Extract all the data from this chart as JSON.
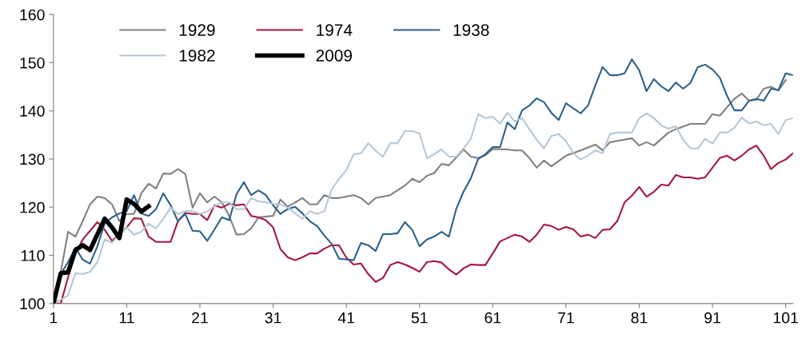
{
  "chart_data": {
    "type": "line",
    "xlim": [
      1,
      102
    ],
    "ylim": [
      100,
      160
    ],
    "xticks": [
      1,
      11,
      21,
      31,
      41,
      51,
      61,
      71,
      81,
      91,
      101
    ],
    "yticks": [
      100,
      110,
      120,
      130,
      140,
      150,
      160
    ],
    "grid": false,
    "legend": "top left",
    "marker": "none",
    "line_style": "solid",
    "series": [
      {
        "name": "1929",
        "color": "#808080",
        "x": [
          1,
          2,
          3,
          4,
          5,
          6,
          7,
          8,
          9,
          10,
          11,
          12,
          13,
          14,
          15,
          16,
          17,
          18,
          19,
          20,
          21,
          22,
          23,
          24,
          25,
          26,
          27,
          28,
          29,
          31,
          32,
          33,
          34,
          35,
          36,
          37,
          38,
          39,
          40,
          42,
          43,
          44,
          45,
          47,
          48,
          49,
          50,
          51,
          52,
          53,
          54,
          55,
          56,
          57,
          58,
          59,
          60,
          61,
          63,
          64,
          65,
          66,
          67,
          68,
          69,
          71,
          73,
          75,
          76,
          77,
          80,
          81,
          82,
          83,
          85,
          86,
          88,
          90,
          91,
          92,
          94,
          95,
          96,
          97,
          98,
          99,
          100,
          101
        ],
        "values": [
          100,
          106.6,
          114.9,
          113.9,
          117.1,
          120.6,
          122.2,
          121.9,
          120.6,
          117.1,
          118.6,
          118.6,
          122.9,
          124.9,
          123.9,
          127,
          126.9,
          127.9,
          126.9,
          119.9,
          122.9,
          121,
          122.2,
          121,
          118.2,
          114.3,
          114.4,
          115.6,
          117.9,
          118.2,
          121.6,
          120.1,
          121,
          121.9,
          120.6,
          120.6,
          122.5,
          121.9,
          121.9,
          122.5,
          121.9,
          120.6,
          121.9,
          122.5,
          123.5,
          124.5,
          125.9,
          125.2,
          126.5,
          127.1,
          129,
          128.7,
          130.3,
          132,
          130.5,
          130.2,
          130.8,
          132.1,
          132,
          131.8,
          131.8,
          130.2,
          128.2,
          129.7,
          128.5,
          130.7,
          131.8,
          133,
          131.8,
          133.5,
          134.3,
          132.8,
          133.5,
          132.8,
          135.5,
          136.2,
          137.3,
          137.3,
          139.3,
          139,
          142.5,
          143.6,
          142.1,
          142.3,
          144.6,
          145,
          144.2,
          146.4
        ]
      },
      {
        "name": "1974",
        "color": "#a5173d",
        "x": [
          1,
          2,
          3,
          4,
          5,
          7,
          8,
          9,
          10,
          11,
          12,
          13,
          14,
          15,
          17,
          18,
          19,
          20,
          21,
          22,
          23,
          24,
          25,
          26,
          27,
          28,
          29,
          30,
          31,
          32,
          33,
          34,
          35,
          36,
          37,
          38,
          39,
          40,
          41,
          42,
          43,
          44,
          45,
          46,
          47,
          48,
          49,
          50,
          51,
          52,
          53,
          54,
          55,
          56,
          57,
          58,
          59,
          60,
          61,
          62,
          63,
          64,
          65,
          66,
          67,
          68,
          69,
          70,
          71,
          72,
          73,
          74,
          75,
          76,
          77,
          78,
          79,
          80,
          81,
          82,
          83,
          84,
          85,
          86,
          87,
          88,
          89,
          90,
          91,
          92,
          93,
          94,
          95,
          96,
          97,
          98,
          99,
          100,
          101,
          102
        ],
        "values": [
          100,
          100,
          105.5,
          110.4,
          113.3,
          116.9,
          115.3,
          113,
          114.4,
          115.8,
          117.7,
          117.6,
          113.9,
          112.8,
          112.8,
          117.1,
          118.8,
          118.6,
          118.6,
          117.3,
          120.4,
          119.9,
          120.7,
          120.4,
          120.6,
          118.2,
          117.9,
          117.3,
          115.8,
          111.3,
          109.6,
          109,
          109.6,
          110.4,
          110.4,
          111.4,
          112.1,
          112.1,
          109.5,
          108.1,
          108.3,
          106.1,
          104.5,
          105.3,
          108,
          108.6,
          108.1,
          107.4,
          106.6,
          108.6,
          108.8,
          108.5,
          107.1,
          106,
          107.3,
          108.1,
          108,
          108,
          110.4,
          112.9,
          113.6,
          114.3,
          113.9,
          112.8,
          114.3,
          116.4,
          116.1,
          115.3,
          115.9,
          115.4,
          113.9,
          114.3,
          113.6,
          115.3,
          115.4,
          117.1,
          121,
          122.4,
          124.2,
          122.2,
          123.2,
          124.7,
          124.5,
          126.7,
          126.2,
          126.2,
          125.9,
          126.2,
          128.2,
          130.2,
          130.7,
          129.7,
          130.7,
          132,
          132.8,
          130.7,
          127.9,
          129.2,
          129.9,
          131.2
        ]
      },
      {
        "name": "1938",
        "color": "#2b5f8c",
        "x": [
          1,
          2,
          3,
          4,
          5,
          6,
          7,
          8,
          9,
          10,
          11,
          12,
          13,
          14,
          15,
          16,
          17,
          18,
          19,
          20,
          21,
          22,
          23,
          24,
          25,
          26,
          27,
          28,
          29,
          30,
          31,
          32,
          33,
          34,
          35,
          36,
          37,
          38,
          39,
          40,
          42,
          43,
          44,
          45,
          46,
          47,
          48,
          49,
          50,
          51,
          52,
          53,
          54,
          55,
          56,
          57,
          58,
          59,
          60,
          61,
          62,
          63,
          64,
          65,
          66,
          67,
          68,
          69,
          70,
          71,
          72,
          73,
          74,
          75,
          76,
          77,
          78,
          79,
          80,
          81,
          82,
          83,
          84,
          85,
          86,
          87,
          88,
          89,
          90,
          91,
          92,
          93,
          94,
          95,
          96,
          97,
          98,
          99,
          100,
          101,
          102
        ],
        "values": [
          100,
          106.1,
          108.6,
          111.6,
          109.1,
          108.3,
          111.9,
          116.6,
          117.9,
          118.7,
          119.2,
          122.5,
          118.7,
          118.2,
          119.6,
          122.9,
          120.4,
          117.1,
          118.6,
          115.1,
          115,
          113,
          115.4,
          117.9,
          117.3,
          122.7,
          125.2,
          122.5,
          123.5,
          122.5,
          120.4,
          118.6,
          119.6,
          120.1,
          118.7,
          117.1,
          116.1,
          114.1,
          112.4,
          109.3,
          109,
          112.6,
          112.1,
          110.9,
          114.4,
          114.4,
          114.6,
          116.9,
          115.3,
          111.9,
          113.3,
          113.9,
          114.9,
          113.9,
          119.6,
          123.2,
          126,
          130,
          131,
          132.5,
          132.5,
          137.6,
          136.2,
          140.1,
          141.1,
          142.6,
          141.8,
          139.6,
          138.1,
          141.6,
          140.5,
          139.5,
          141.1,
          145.3,
          149.1,
          147.4,
          147.4,
          147.8,
          150.7,
          148.4,
          144.1,
          146.6,
          145.1,
          144.1,
          145.9,
          144.6,
          145.8,
          149.1,
          149.6,
          148.6,
          146.9,
          143.1,
          140.1,
          140.1,
          142.1,
          142.5,
          142.1,
          144.6,
          144.3,
          147.8,
          147.4
        ]
      },
      {
        "name": "1982",
        "color": "#b5c7d9",
        "x": [
          1,
          2,
          3,
          4,
          5,
          6,
          7,
          8,
          9,
          10,
          11,
          12,
          13,
          14,
          15,
          16,
          17,
          18,
          19,
          20,
          21,
          22,
          23,
          24,
          25,
          26,
          27,
          28,
          29,
          30,
          31,
          32,
          33,
          34,
          35,
          36,
          37,
          38,
          39,
          40,
          41,
          42,
          43,
          44,
          45,
          46,
          47,
          48,
          49,
          50,
          51,
          52,
          53,
          54,
          55,
          56,
          57,
          58,
          59,
          60,
          61,
          62,
          63,
          64,
          65,
          66,
          67,
          68,
          69,
          70,
          71,
          72,
          73,
          74,
          75,
          76,
          77,
          78,
          80,
          81,
          82,
          83,
          84,
          85,
          86,
          87,
          88,
          89,
          90,
          91,
          92,
          93,
          94,
          95,
          96,
          97,
          98,
          99,
          100,
          101,
          102
        ],
        "values": [
          100,
          100.8,
          101.7,
          106.3,
          106.1,
          106.6,
          108.6,
          113.3,
          112.6,
          114.4,
          115.8,
          114.3,
          114.9,
          116.6,
          115.6,
          117.6,
          119.9,
          118.6,
          119.2,
          119.2,
          118.6,
          119.1,
          120.2,
          121,
          121,
          119.6,
          119.6,
          121.9,
          121.2,
          121,
          120.7,
          120.6,
          119.9,
          118.7,
          117.6,
          119.2,
          118.6,
          119.2,
          123.7,
          125.9,
          127.7,
          131,
          131.2,
          133.3,
          131.7,
          130.5,
          133.3,
          133.3,
          135.8,
          135.8,
          135.3,
          130.2,
          131,
          132,
          130.5,
          130.5,
          132.2,
          134.2,
          139.3,
          138.5,
          138.8,
          137.3,
          139.6,
          137.8,
          138.5,
          136.2,
          134,
          132.2,
          134.8,
          135.2,
          133.7,
          131.2,
          129.9,
          130.7,
          131.8,
          131.2,
          135.2,
          135.5,
          135.5,
          138.5,
          139.5,
          138.5,
          137,
          136.3,
          136.8,
          134,
          132.2,
          132.2,
          134.2,
          133.2,
          135.5,
          135.5,
          136.5,
          138.6,
          137.4,
          137.8,
          137,
          137.3,
          135.2,
          138.1,
          138.5
        ]
      },
      {
        "name": "2009",
        "color": "#000000",
        "x": [
          1,
          2,
          3,
          4,
          5,
          6,
          8,
          9,
          10,
          11,
          12,
          13,
          14
        ],
        "values": [
          100,
          106.3,
          106.5,
          111.1,
          112.1,
          111.1,
          117.6,
          115.8,
          113.6,
          121.6,
          120.7,
          119.1,
          120.2
        ]
      }
    ]
  }
}
